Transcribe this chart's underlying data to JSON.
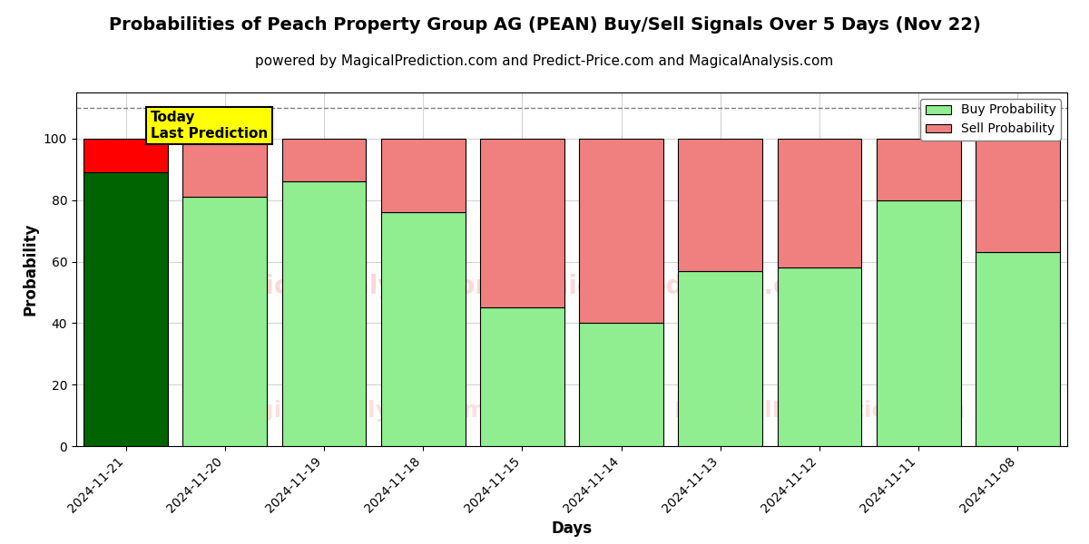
{
  "title": "Probabilities of Peach Property Group AG (PEAN) Buy/Sell Signals Over 5 Days (Nov 22)",
  "subtitle": "powered by MagicalPrediction.com and Predict-Price.com and MagicalAnalysis.com",
  "xlabel": "Days",
  "ylabel": "Probability",
  "dates": [
    "2024-11-21",
    "2024-11-20",
    "2024-11-19",
    "2024-11-18",
    "2024-11-15",
    "2024-11-14",
    "2024-11-13",
    "2024-11-12",
    "2024-11-11",
    "2024-11-08"
  ],
  "buy_probs": [
    89,
    81,
    86,
    76,
    45,
    40,
    57,
    58,
    80,
    63
  ],
  "sell_probs": [
    11,
    19,
    14,
    24,
    55,
    60,
    43,
    42,
    20,
    37
  ],
  "today_buy_color": "#006400",
  "today_sell_color": "#ff0000",
  "normal_buy_color": "#90EE90",
  "normal_sell_color": "#F08080",
  "bar_edge_color": "black",
  "dashed_line_y": 110,
  "ylim": [
    0,
    115
  ],
  "yticks": [
    0,
    20,
    40,
    60,
    80,
    100
  ],
  "legend_buy_color": "#90EE90",
  "legend_sell_color": "#F08080",
  "watermark_lines": [
    "MagicalAnalysis.com",
    "MagicalPrediction.com"
  ],
  "annotation_text": "Today\nLast Prediction",
  "annotation_bg": "#ffff00",
  "title_fontsize": 14,
  "subtitle_fontsize": 11,
  "axis_label_fontsize": 12,
  "tick_fontsize": 10,
  "bar_width": 0.85
}
